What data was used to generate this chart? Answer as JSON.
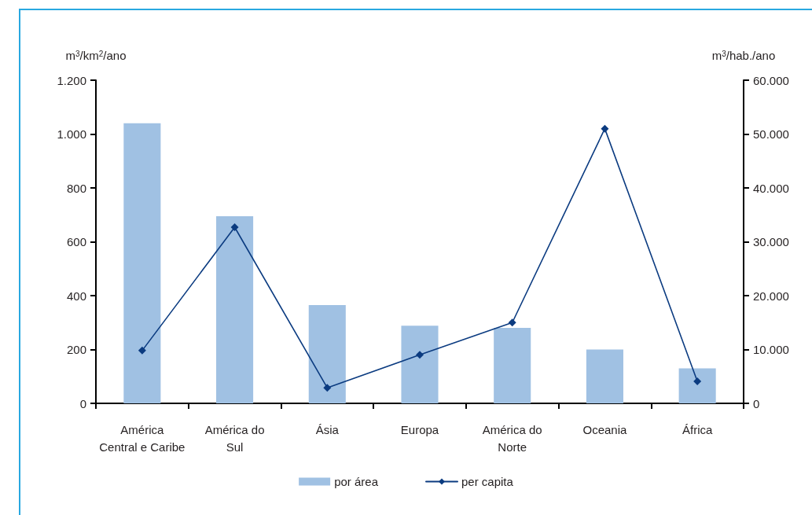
{
  "chart_data": {
    "type": "bar",
    "categories": [
      "América\nCentral e Caribe",
      "América do\nSul",
      "Ásia",
      "Europa",
      "América do\nNorte",
      "Oceania",
      "África"
    ],
    "series": [
      {
        "name": "por área",
        "color": "#a0c1e3",
        "values": [
          1040,
          695,
          365,
          288,
          280,
          200,
          130
        ]
      },
      {
        "name": "per capita",
        "type": "line",
        "axis": "y2",
        "color": "#0b3b80",
        "values": [
          9800,
          32700,
          2900,
          9000,
          15000,
          51000,
          4100
        ]
      }
    ],
    "ylabel": "m$^{3}$/km$^{2}$/ano",
    "y2label": "m$^{3}$/hab./ano",
    "ylim": [
      0,
      1200
    ],
    "yticks": [
      0,
      200,
      400,
      600,
      800,
      {
        "value": 1000,
        "label": "1.000"
      },
      {
        "value": 1200,
        "label": "1.200"
      }
    ],
    "y2lim": [
      0,
      60000
    ],
    "y2ticks": [
      0,
      {
        "value": 10000,
        "label": "10.000"
      },
      {
        "value": 20000,
        "label": "20.000"
      },
      {
        "value": 30000,
        "label": "30.000"
      },
      {
        "value": 40000,
        "label": "40.000"
      },
      {
        "value": 50000,
        "label": "50.000"
      },
      {
        "value": 60000,
        "label": "60.000"
      }
    ],
    "legend": "bottom",
    "marker": "diamond"
  }
}
